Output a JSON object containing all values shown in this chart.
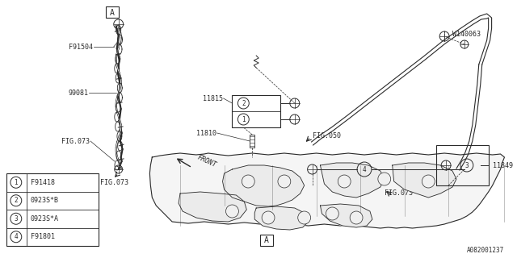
{
  "bg_color": "#ffffff",
  "line_color": "#2a2a2a",
  "text_color": "#2a2a2a",
  "diagram_id": "A082001237",
  "legend_items": [
    {
      "num": "1",
      "code": "F91418"
    },
    {
      "num": "2",
      "code": "0923S*B"
    },
    {
      "num": "3",
      "code": "0923S*A"
    },
    {
      "num": "4",
      "code": "F91801"
    }
  ],
  "fig_w": 6.4,
  "fig_h": 3.2,
  "dpi": 100
}
